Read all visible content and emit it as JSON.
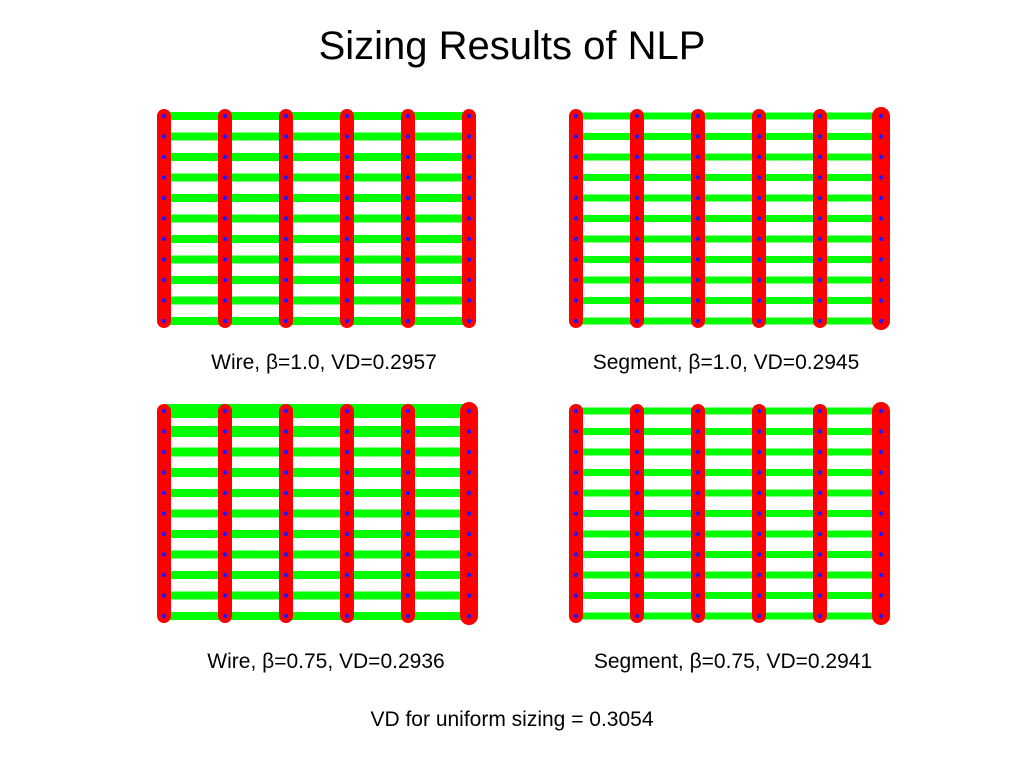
{
  "slide": {
    "title": "Sizing Results of NLP",
    "footer": "VD for uniform sizing = 0.3054"
  },
  "colors": {
    "vertical_wires": "#ff0000",
    "horizontal_wires": "#00ff00",
    "nodes": "#1a1aff",
    "background": "#ffffff"
  },
  "panels": [
    {
      "caption": "Wire, β=1.0, VD=0.2957"
    },
    {
      "caption": "Segment, β=1.0, VD=0.2945"
    },
    {
      "caption": "Wire, β=0.75, VD=0.2936"
    },
    {
      "caption": "Segment, β=0.75, VD=0.2941"
    }
  ]
}
